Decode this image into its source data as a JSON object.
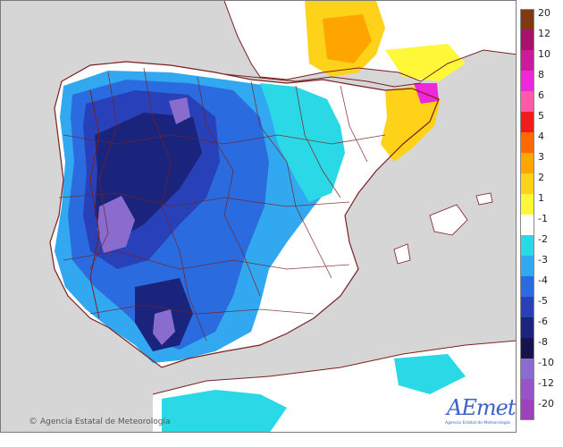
{
  "map": {
    "type": "temperature anomaly map",
    "region": "Iberian Peninsula and Balearic Islands",
    "credit_text": "Agencia Estatal de Meteorología",
    "logo_text": "AEmet",
    "logo_subtext": "Agencia Estatal de Meteorología"
  },
  "legend": {
    "classes": [
      {
        "label": "20",
        "color": "#7f3a10"
      },
      {
        "label": "12",
        "color": "#a8126a"
      },
      {
        "label": "10",
        "color": "#cc1a9a"
      },
      {
        "label": "8",
        "color": "#ee28d8"
      },
      {
        "label": "6",
        "color": "#ff5aa8"
      },
      {
        "label": "5",
        "color": "#ee1c1c"
      },
      {
        "label": "4",
        "color": "#ff6a00"
      },
      {
        "label": "3",
        "color": "#ffa500"
      },
      {
        "label": "2",
        "color": "#ffd21a"
      },
      {
        "label": "1",
        "color": "#fff838"
      },
      {
        "label": "-1",
        "color": "#ffffff"
      },
      {
        "label": "-2",
        "color": "#2ad8e6"
      },
      {
        "label": "-3",
        "color": "#32a8f0"
      },
      {
        "label": "-4",
        "color": "#2a6ce0"
      },
      {
        "label": "-5",
        "color": "#2840b8"
      },
      {
        "label": "-6",
        "color": "#1a247c"
      },
      {
        "label": "-8",
        "color": "#16124e"
      },
      {
        "label": "-10",
        "color": "#8a6cce"
      },
      {
        "label": "-12",
        "color": "#9a52c8"
      },
      {
        "label": "-20",
        "color": "#9c42bc"
      }
    ]
  }
}
